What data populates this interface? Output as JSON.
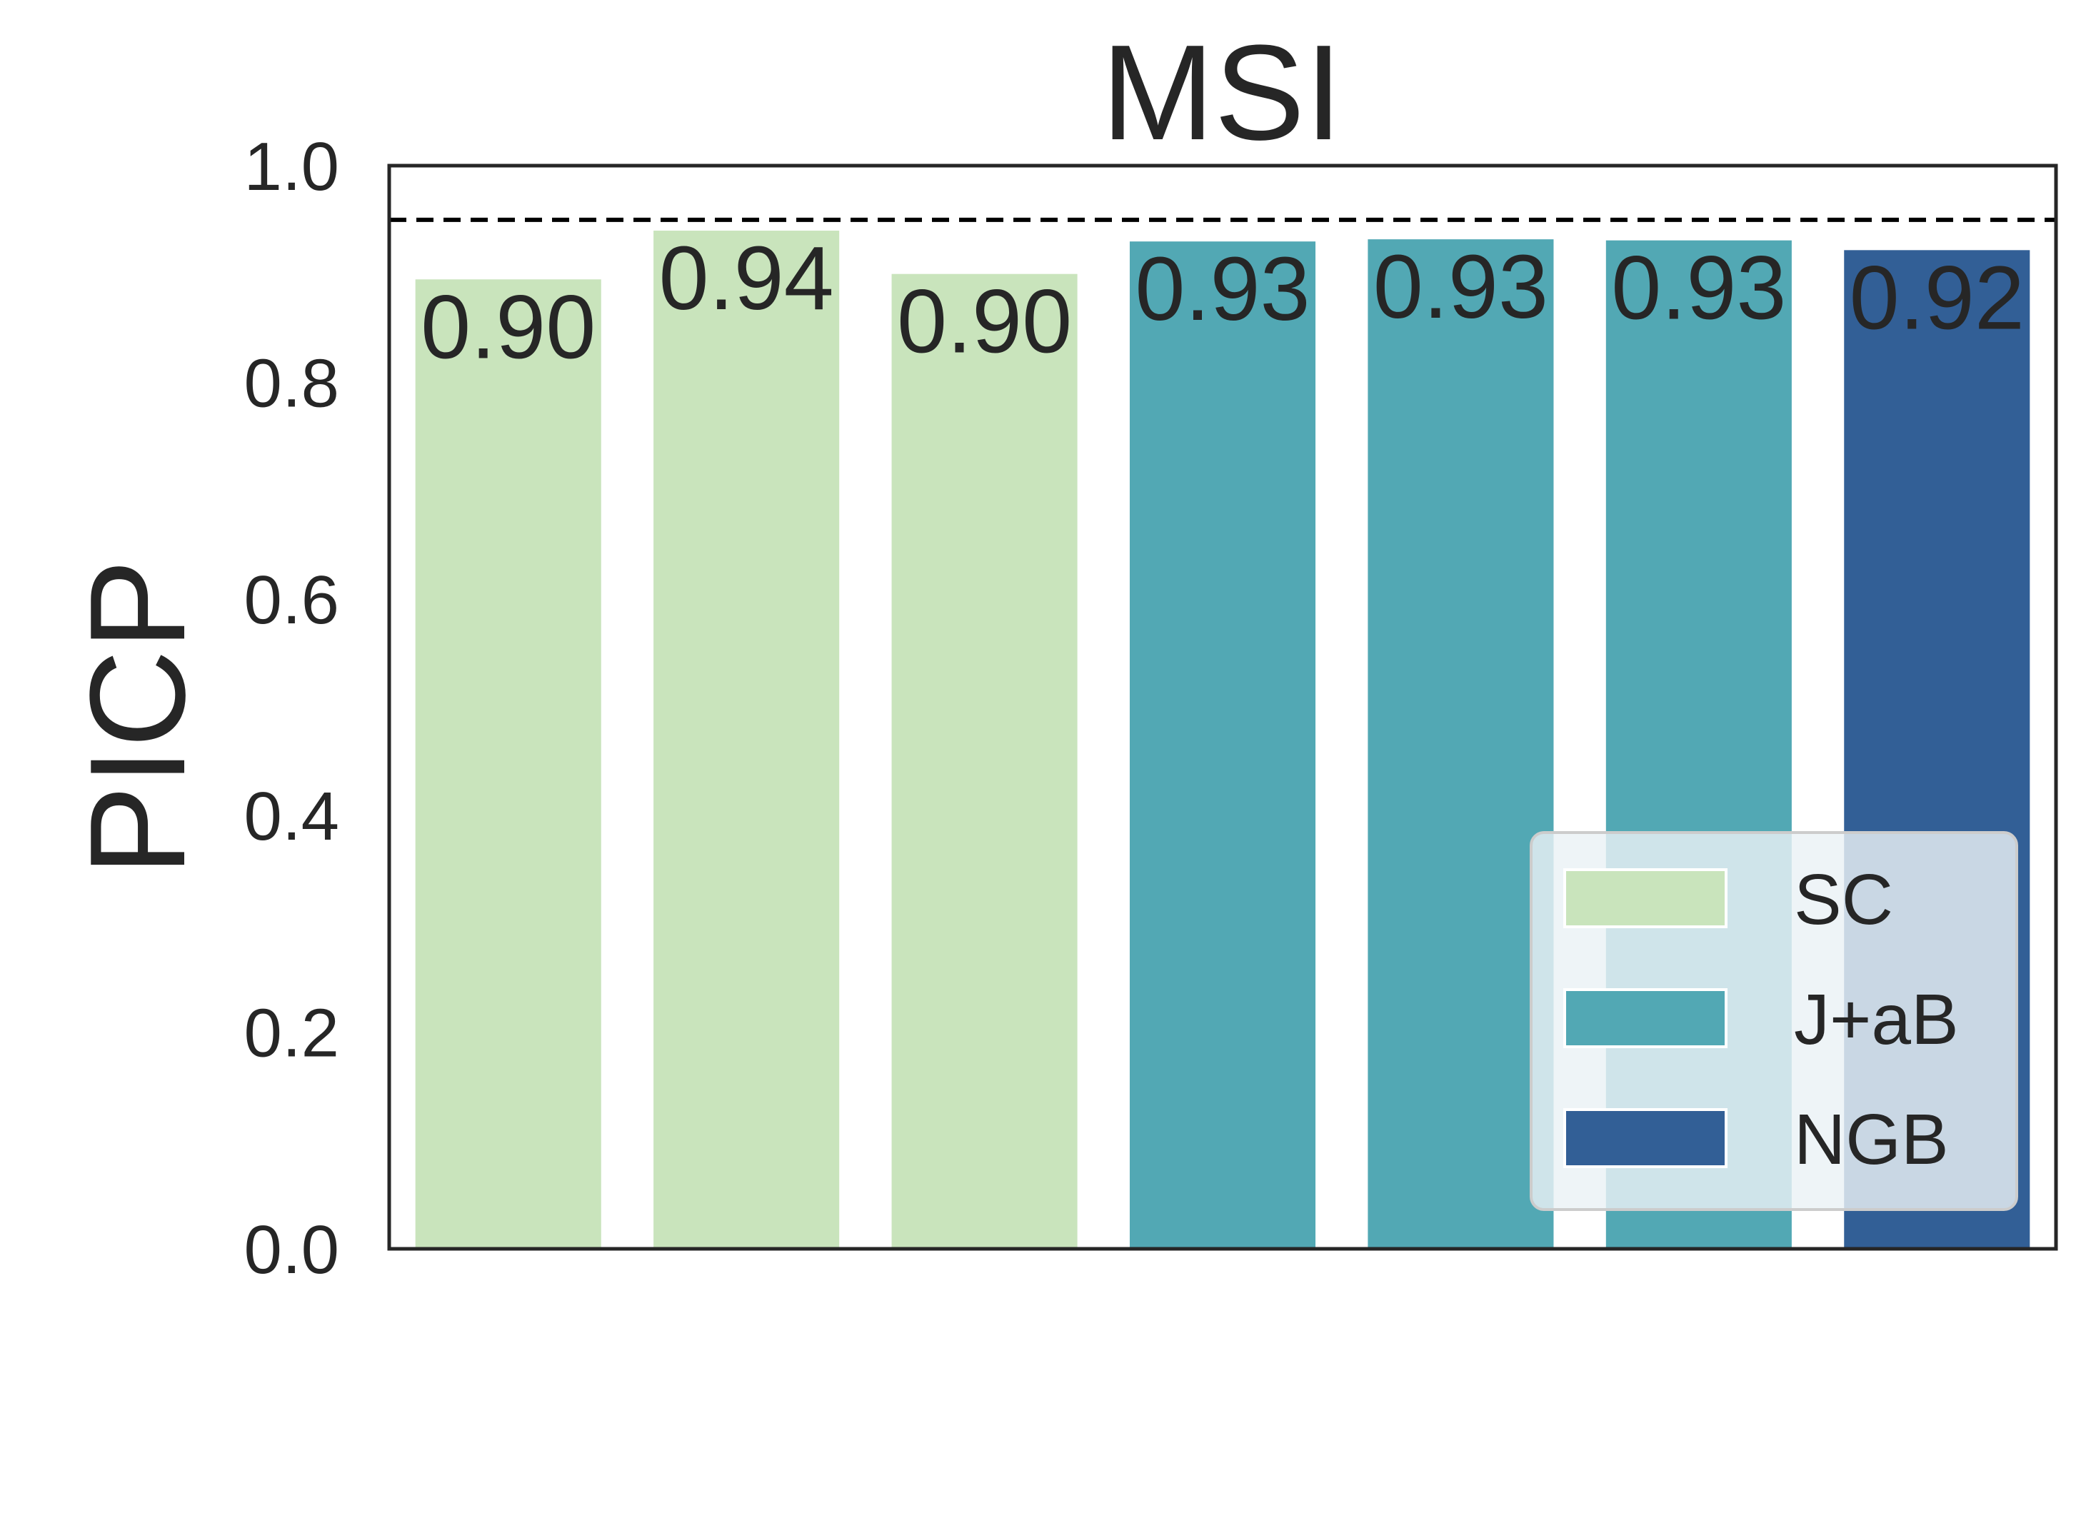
{
  "chart_data": {
    "type": "bar",
    "title": "MSI",
    "xlabel": "",
    "ylabel": "PICP",
    "ylim": [
      0,
      1.0
    ],
    "yticks": [
      "0.0",
      "0.2",
      "0.4",
      "0.6",
      "0.8",
      "1.0"
    ],
    "ytick_values": [
      0,
      0.2,
      0.4,
      0.6,
      0.8,
      1.0
    ],
    "reference_line": 0.95,
    "bars": [
      {
        "group": "SC",
        "value": 0.895,
        "label": "0.90"
      },
      {
        "group": "SC",
        "value": 0.94,
        "label": "0.94"
      },
      {
        "group": "SC",
        "value": 0.9,
        "label": "0.90"
      },
      {
        "group": "J+aB",
        "value": 0.93,
        "label": "0.93"
      },
      {
        "group": "J+aB",
        "value": 0.932,
        "label": "0.93"
      },
      {
        "group": "J+aB",
        "value": 0.931,
        "label": "0.93"
      },
      {
        "group": "NGB",
        "value": 0.922,
        "label": "0.92"
      }
    ],
    "legend": {
      "placement": "lower-right",
      "entries": [
        {
          "name": "SC",
          "color": "#c9e4bc"
        },
        {
          "name": "J+aB",
          "color": "#52a8b4"
        },
        {
          "name": "NGB",
          "color": "#325f96"
        }
      ]
    },
    "colors": {
      "SC": "#c9e4bc",
      "J+aB": "#52a8b4",
      "NGB": "#325f96",
      "axis": "#262626",
      "reference_line": "#000000"
    }
  }
}
